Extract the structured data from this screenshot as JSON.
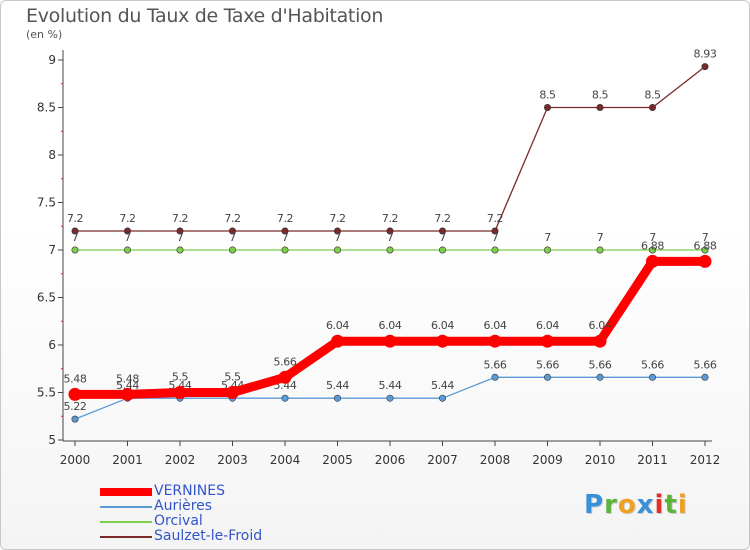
{
  "header": {
    "title": "Evolution du Taux de Taxe d'Habitation",
    "unit": "(en %)"
  },
  "logo": {
    "text": "Proxiti",
    "letters": [
      {
        "ch": "P",
        "color": "#3a8fd9"
      },
      {
        "ch": "r",
        "color": "#5bb43a"
      },
      {
        "ch": "o",
        "color": "#f0a020"
      },
      {
        "ch": "x",
        "color": "#3a8fd9"
      },
      {
        "ch": "i",
        "color": "#e0302a"
      },
      {
        "ch": "t",
        "color": "#5bb43a"
      },
      {
        "ch": "i",
        "color": "#f0a020"
      }
    ]
  },
  "chart_data": {
    "type": "line",
    "title": "Evolution du Taux de Taxe d'Habitation",
    "ylabel": "(en %)",
    "xlabel": "",
    "ylim": [
      5,
      9
    ],
    "yticks": [
      "5",
      "5.5",
      "6",
      "6.5",
      "7",
      "7.5",
      "8",
      "8.5",
      "9"
    ],
    "x": [
      "2000",
      "2001",
      "2002",
      "2003",
      "2004",
      "2005",
      "2006",
      "2007",
      "2008",
      "2009",
      "2010",
      "2011",
      "2012"
    ],
    "series": [
      {
        "name": "Saulzet-le-Froid",
        "color": "#7a2a2a",
        "values": [
          7.2,
          7.2,
          7.2,
          7.2,
          7.2,
          7.2,
          7.2,
          7.2,
          7.2,
          8.5,
          8.5,
          8.5,
          8.93
        ],
        "labels": [
          "7.2",
          "7.2",
          "7.2",
          "7.2",
          "7.2",
          "7.2",
          "7.2",
          "7.2",
          "7.2",
          "8.5",
          "8.5",
          "8.5",
          "8.93"
        ]
      },
      {
        "name": "Orcival",
        "color": "#7ccf4a",
        "values": [
          7,
          7,
          7,
          7,
          7,
          7,
          7,
          7,
          7,
          7,
          7,
          7,
          7
        ],
        "labels": [
          "7",
          "7",
          "7",
          "7",
          "7",
          "7",
          "7",
          "7",
          "7",
          "7",
          "7",
          "7",
          "7"
        ]
      },
      {
        "name": "Aurières",
        "color": "#5b9bd5",
        "values": [
          5.22,
          5.44,
          5.44,
          5.44,
          5.44,
          5.44,
          5.44,
          5.44,
          5.66,
          5.66,
          5.66,
          5.66,
          5.66
        ],
        "labels": [
          "5.22",
          "5.44",
          "5.44",
          "5.44",
          "5.44",
          "5.44",
          "5.44",
          "5.44",
          "5.66",
          "5.66",
          "5.66",
          "5.66",
          "5.66"
        ]
      },
      {
        "name": "VERNINES",
        "color": "#ff0000",
        "values": [
          5.48,
          5.48,
          5.5,
          5.5,
          5.66,
          6.04,
          6.04,
          6.04,
          6.04,
          6.04,
          6.04,
          6.88,
          6.88
        ],
        "labels": [
          "5.48",
          "5.48",
          "5.5",
          "5.5",
          "5.66",
          "6.04",
          "6.04",
          "6.04",
          "6.04",
          "6.04",
          "6.04",
          "6.88",
          "6.88"
        ]
      }
    ],
    "legend": [
      "VERNINES",
      "Aurières",
      "Orcival",
      "Saulzet-le-Froid"
    ],
    "legend_colors": [
      "#ff0000",
      "#5b9bd5",
      "#7ccf4a",
      "#7a2a2a"
    ],
    "legend_text_colors": [
      "#3355cc",
      "#3355cc",
      "#3355cc",
      "#3355cc"
    ]
  }
}
